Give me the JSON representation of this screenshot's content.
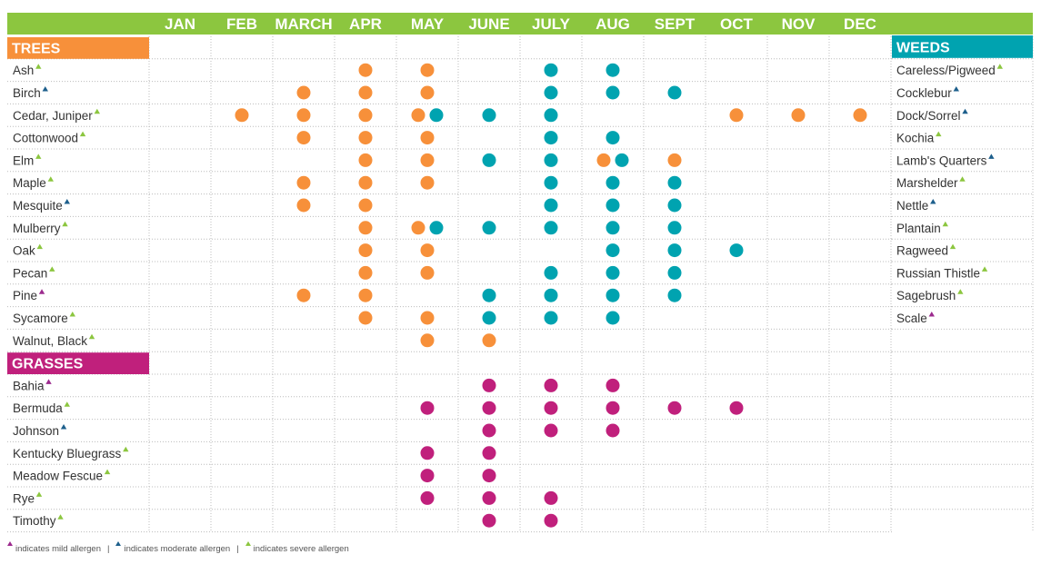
{
  "colors": {
    "header_bg": "#8cc63f",
    "trees": "#f7903a",
    "weeds_teal": "#00a3b0",
    "grasses": "#c0207c",
    "mild": "#9c2a8e",
    "moderate": "#1d5f8c",
    "severe": "#8cc63f",
    "grid": "#bcbcbc"
  },
  "legend": {
    "mild": "indicates mild allergen",
    "moderate": "indicates moderate allergen",
    "severe": "indicates severe allergen",
    "separator": "|"
  },
  "chart_data": {
    "type": "table",
    "months": [
      "JAN",
      "FEB",
      "MARCH",
      "APR",
      "MAY",
      "JUNE",
      "JULY",
      "AUG",
      "SEPT",
      "OCT",
      "NOV",
      "DEC"
    ],
    "dot_colors": {
      "o": "orange",
      "t": "teal",
      "m": "magenta"
    },
    "sections": [
      {
        "label": "TREES",
        "color": "#f7903a",
        "rows": [
          {
            "name": "Ash",
            "severity": "severe",
            "cells": {
              "APR": [
                "o"
              ],
              "MAY": [
                "o"
              ],
              "JULY": [
                "t"
              ],
              "AUG": [
                "t"
              ]
            }
          },
          {
            "name": "Birch",
            "severity": "moderate",
            "cells": {
              "MARCH": [
                "o"
              ],
              "APR": [
                "o"
              ],
              "MAY": [
                "o"
              ],
              "JULY": [
                "t"
              ],
              "AUG": [
                "t"
              ],
              "SEPT": [
                "t"
              ]
            }
          },
          {
            "name": "Cedar, Juniper",
            "severity": "severe",
            "cells": {
              "FEB": [
                "o"
              ],
              "MARCH": [
                "o"
              ],
              "APR": [
                "o"
              ],
              "MAY": [
                "o",
                "t"
              ],
              "JUNE": [
                "t"
              ],
              "JULY": [
                "t"
              ],
              "OCT": [
                "o"
              ],
              "NOV": [
                "o"
              ],
              "DEC": [
                "o"
              ]
            }
          },
          {
            "name": "Cottonwood",
            "severity": "severe",
            "cells": {
              "MARCH": [
                "o"
              ],
              "APR": [
                "o"
              ],
              "MAY": [
                "o"
              ],
              "JULY": [
                "t"
              ],
              "AUG": [
                "t"
              ]
            }
          },
          {
            "name": "Elm",
            "severity": "severe",
            "cells": {
              "APR": [
                "o"
              ],
              "MAY": [
                "o"
              ],
              "JUNE": [
                "t"
              ],
              "JULY": [
                "t"
              ],
              "AUG": [
                "o",
                "t"
              ],
              "SEPT": [
                "o"
              ]
            }
          },
          {
            "name": "Maple",
            "severity": "severe",
            "cells": {
              "MARCH": [
                "o"
              ],
              "APR": [
                "o"
              ],
              "MAY": [
                "o"
              ],
              "JULY": [
                "t"
              ],
              "AUG": [
                "t"
              ],
              "SEPT": [
                "t"
              ]
            }
          },
          {
            "name": "Mesquite",
            "severity": "moderate",
            "cells": {
              "MARCH": [
                "o"
              ],
              "APR": [
                "o"
              ],
              "JULY": [
                "t"
              ],
              "AUG": [
                "t"
              ],
              "SEPT": [
                "t"
              ]
            }
          },
          {
            "name": "Mulberry",
            "severity": "severe",
            "cells": {
              "APR": [
                "o"
              ],
              "MAY": [
                "o",
                "t"
              ],
              "JUNE": [
                "t"
              ],
              "JULY": [
                "t"
              ],
              "AUG": [
                "t"
              ],
              "SEPT": [
                "t"
              ]
            }
          },
          {
            "name": "Oak",
            "severity": "severe",
            "cells": {
              "APR": [
                "o"
              ],
              "MAY": [
                "o"
              ],
              "AUG": [
                "t"
              ],
              "SEPT": [
                "t"
              ],
              "OCT": [
                "t"
              ]
            }
          },
          {
            "name": "Pecan",
            "severity": "severe",
            "cells": {
              "APR": [
                "o"
              ],
              "MAY": [
                "o"
              ],
              "JULY": [
                "t"
              ],
              "AUG": [
                "t"
              ],
              "SEPT": [
                "t"
              ]
            }
          },
          {
            "name": "Pine",
            "severity": "mild",
            "cells": {
              "MARCH": [
                "o"
              ],
              "APR": [
                "o"
              ],
              "JUNE": [
                "t"
              ],
              "JULY": [
                "t"
              ],
              "AUG": [
                "t"
              ],
              "SEPT": [
                "t"
              ]
            }
          },
          {
            "name": "Sycamore",
            "severity": "severe",
            "cells": {
              "APR": [
                "o"
              ],
              "MAY": [
                "o"
              ],
              "JUNE": [
                "t"
              ],
              "JULY": [
                "t"
              ],
              "AUG": [
                "t"
              ]
            }
          },
          {
            "name": "Walnut, Black",
            "severity": "severe",
            "cells": {
              "MAY": [
                "o"
              ],
              "JUNE": [
                "o"
              ]
            }
          }
        ]
      },
      {
        "label": "GRASSES",
        "color": "#c0207c",
        "rows": [
          {
            "name": "Bahia",
            "severity": "mild",
            "cells": {
              "JUNE": [
                "m"
              ],
              "JULY": [
                "m"
              ],
              "AUG": [
                "m"
              ]
            }
          },
          {
            "name": "Bermuda",
            "severity": "severe",
            "cells": {
              "MAY": [
                "m"
              ],
              "JUNE": [
                "m"
              ],
              "JULY": [
                "m"
              ],
              "AUG": [
                "m"
              ],
              "SEPT": [
                "m"
              ],
              "OCT": [
                "m"
              ]
            }
          },
          {
            "name": "Johnson",
            "severity": "moderate",
            "cells": {
              "JUNE": [
                "m"
              ],
              "JULY": [
                "m"
              ],
              "AUG": [
                "m"
              ]
            }
          },
          {
            "name": "Kentucky Bluegrass",
            "severity": "severe",
            "cells": {
              "MAY": [
                "m"
              ],
              "JUNE": [
                "m"
              ]
            }
          },
          {
            "name": "Meadow Fescue",
            "severity": "severe",
            "cells": {
              "MAY": [
                "m"
              ],
              "JUNE": [
                "m"
              ]
            }
          },
          {
            "name": "Rye",
            "severity": "severe",
            "cells": {
              "MAY": [
                "m"
              ],
              "JUNE": [
                "m"
              ],
              "JULY": [
                "m"
              ]
            }
          },
          {
            "name": "Timothy",
            "severity": "severe",
            "cells": {
              "JUNE": [
                "m"
              ],
              "JULY": [
                "m"
              ]
            }
          }
        ]
      }
    ],
    "weeds": {
      "label": "WEEDS",
      "color": "#00a3b0",
      "rows": [
        {
          "name": "Careless/Pigweed",
          "severity": "severe"
        },
        {
          "name": "Cocklebur",
          "severity": "moderate"
        },
        {
          "name": "Dock/Sorrel",
          "severity": "moderate"
        },
        {
          "name": "Kochia",
          "severity": "severe"
        },
        {
          "name": "Lamb's Quarters",
          "severity": "moderate"
        },
        {
          "name": "Marshelder",
          "severity": "severe"
        },
        {
          "name": "Nettle",
          "severity": "moderate"
        },
        {
          "name": "Plantain",
          "severity": "severe"
        },
        {
          "name": "Ragweed",
          "severity": "severe"
        },
        {
          "name": "Russian Thistle",
          "severity": "severe"
        },
        {
          "name": "Sagebrush",
          "severity": "severe"
        },
        {
          "name": "Scale",
          "severity": "mild"
        }
      ]
    }
  }
}
